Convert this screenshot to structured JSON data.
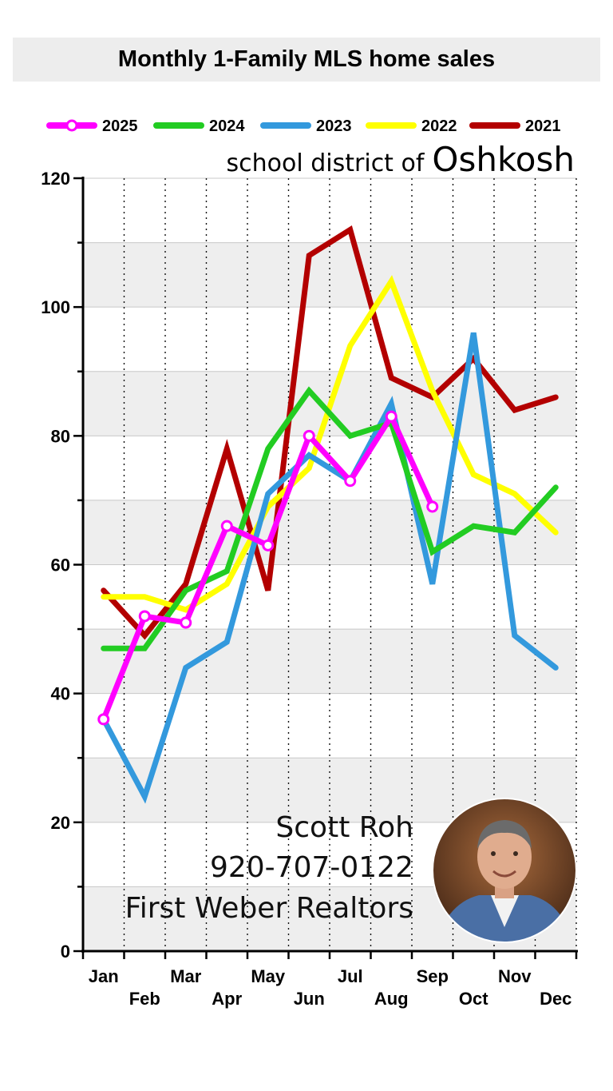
{
  "header": {
    "title": "Monthly 1-Family MLS home sales"
  },
  "subtitle": {
    "prefix": "school district of",
    "place": "Oshkosh"
  },
  "signature": {
    "name": "Scott Roh",
    "phone": "920-707-0122",
    "company": "First Weber Realtors"
  },
  "chart_data": {
    "type": "line",
    "title": "Monthly 1-Family MLS home sales",
    "xlabel": "",
    "ylabel": "",
    "categories": [
      "Jan",
      "Feb",
      "Mar",
      "Apr",
      "May",
      "Jun",
      "Jul",
      "Aug",
      "Sep",
      "Oct",
      "Nov",
      "Dec"
    ],
    "ylim": [
      0,
      120
    ],
    "yticks": [
      0,
      20,
      40,
      60,
      80,
      100,
      120
    ],
    "grid": "alternating horizontal bands every 10, dotted vertical lines",
    "legend_position": "top",
    "series": [
      {
        "name": "2021",
        "color": "#b30000",
        "values": [
          56,
          49,
          57,
          78,
          56,
          108,
          112,
          89,
          86,
          92,
          84,
          86
        ]
      },
      {
        "name": "2022",
        "color": "#ffff00",
        "values": [
          55,
          55,
          53,
          57,
          69,
          75,
          94,
          104,
          87,
          74,
          71,
          65
        ]
      },
      {
        "name": "2023",
        "color": "#3399dd",
        "values": [
          36,
          24,
          44,
          48,
          71,
          77,
          73,
          85,
          57,
          96,
          49,
          44
        ]
      },
      {
        "name": "2024",
        "color": "#22cc22",
        "values": [
          47,
          47,
          56,
          59,
          78,
          87,
          80,
          82,
          62,
          66,
          65,
          72
        ]
      },
      {
        "name": "2025",
        "color": "#ff00ff",
        "values": [
          36,
          52,
          51,
          66,
          63,
          80,
          73,
          83,
          69,
          null,
          null,
          null
        ],
        "markers": true
      }
    ],
    "legend_order": [
      "2025",
      "2024",
      "2023",
      "2022",
      "2021"
    ]
  }
}
